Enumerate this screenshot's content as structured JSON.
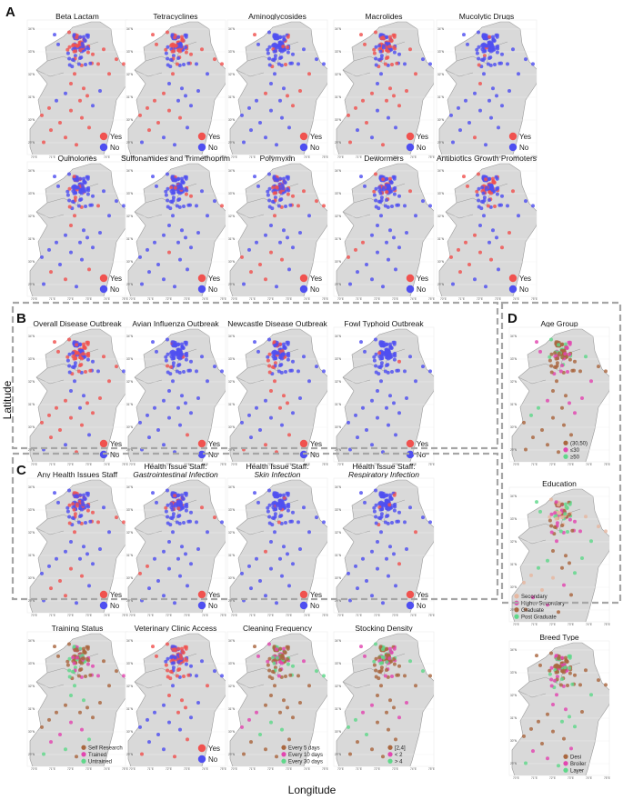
{
  "panel_labels": {
    "a": "A",
    "b": "B",
    "c": "C",
    "d": "D"
  },
  "axis_labels": {
    "x": "Longitude",
    "y": "Latitude"
  },
  "x_ticks": [
    "70°E",
    "71°E",
    "72°E",
    "73°E",
    "74°E",
    "75°E"
  ],
  "y_ticks": [
    "34°N",
    "33°N",
    "32°N",
    "31°N",
    "30°N",
    "29°N"
  ],
  "colors": {
    "yes": "#f0524f",
    "no": "#4f4ff0",
    "group1": "#a9673f",
    "group2": "#e246b0",
    "group3": "#5fd88a",
    "group4": "#e7b7a0",
    "map_fill": "#d9d9d9",
    "border": "#9a9a9a",
    "dash": "#a6a6a6"
  },
  "chart_data": [
    {
      "type": "scatter",
      "title": "Beta Lactam",
      "legend": [
        "Yes",
        "No"
      ],
      "legend_position": "bottom-right",
      "xlim": [
        70,
        75.5
      ],
      "ylim": [
        29,
        34.5
      ]
    },
    {
      "type": "scatter",
      "title": "Tetracyclines",
      "legend": [
        "Yes",
        "No"
      ],
      "legend_position": "bottom-right",
      "xlim": [
        70,
        75.5
      ],
      "ylim": [
        29,
        34.5
      ]
    },
    {
      "type": "scatter",
      "title": "Aminoglycosides",
      "legend": [
        "Yes",
        "No"
      ],
      "legend_position": "bottom-right",
      "xlim": [
        70,
        75.5
      ],
      "ylim": [
        29,
        34.5
      ]
    },
    {
      "type": "scatter",
      "title": "Macrolides",
      "legend": [
        "Yes",
        "No"
      ],
      "legend_position": "bottom-right",
      "xlim": [
        70,
        75.5
      ],
      "ylim": [
        29,
        34.5
      ]
    },
    {
      "type": "scatter",
      "title": "Mucolytic Drugs",
      "legend": [
        "Yes",
        "No"
      ],
      "legend_position": "bottom-right",
      "xlim": [
        70,
        75.5
      ],
      "ylim": [
        29,
        34.5
      ]
    },
    {
      "type": "scatter",
      "title": "Quinolones",
      "legend": [
        "Yes",
        "No"
      ],
      "legend_position": "bottom-right",
      "xlim": [
        70,
        75.5
      ],
      "ylim": [
        29,
        34.5
      ]
    },
    {
      "type": "scatter",
      "title": "Sulfonamides and Trimethoprim",
      "legend": [
        "Yes",
        "No"
      ],
      "legend_position": "bottom-right",
      "xlim": [
        70,
        75.5
      ],
      "ylim": [
        29,
        34.5
      ]
    },
    {
      "type": "scatter",
      "title": "Polymyxin",
      "legend": [
        "Yes",
        "No"
      ],
      "legend_position": "bottom-right",
      "xlim": [
        70,
        75.5
      ],
      "ylim": [
        29,
        34.5
      ]
    },
    {
      "type": "scatter",
      "title": "Dewormers",
      "legend": [
        "Yes",
        "No"
      ],
      "legend_position": "bottom-right",
      "xlim": [
        70,
        75.5
      ],
      "ylim": [
        29,
        34.5
      ]
    },
    {
      "type": "scatter",
      "title": "Antibiotics Growth Promoters",
      "legend": [
        "Yes",
        "No"
      ],
      "legend_position": "bottom-right",
      "xlim": [
        70,
        75.5
      ],
      "ylim": [
        29,
        34.5
      ]
    },
    {
      "type": "scatter",
      "title": "Overall Disease Outbreak",
      "legend": [
        "Yes",
        "No"
      ],
      "legend_position": "bottom-right",
      "xlim": [
        70,
        75.5
      ],
      "ylim": [
        29,
        34.5
      ]
    },
    {
      "type": "scatter",
      "title": "Avian Influenza Outbreak",
      "legend": [
        "Yes",
        "No"
      ],
      "legend_position": "bottom-right",
      "xlim": [
        70,
        75.5
      ],
      "ylim": [
        29,
        34.5
      ]
    },
    {
      "type": "scatter",
      "title": "Newcastle Disease Outbreak",
      "legend": [
        "Yes",
        "No"
      ],
      "legend_position": "bottom-right",
      "xlim": [
        70,
        75.5
      ],
      "ylim": [
        29,
        34.5
      ]
    },
    {
      "type": "scatter",
      "title": "Fowl Typhoid Outbreak",
      "legend": [
        "Yes",
        "No"
      ],
      "legend_position": "bottom-right",
      "xlim": [
        70,
        75.5
      ],
      "ylim": [
        29,
        34.5
      ]
    },
    {
      "type": "scatter",
      "title": "Any Health Issues Staff",
      "legend": [
        "Yes",
        "No"
      ],
      "legend_position": "bottom-right",
      "xlim": [
        70,
        75.5
      ],
      "ylim": [
        29,
        34.5
      ]
    },
    {
      "type": "scatter",
      "title": "Health Issue Staff:",
      "subtitle": "Gastrointestinal Infection",
      "legend": [
        "Yes",
        "No"
      ],
      "legend_position": "bottom-right",
      "xlim": [
        70,
        75.5
      ],
      "ylim": [
        29,
        34.5
      ]
    },
    {
      "type": "scatter",
      "title": "Health Issue Staff:",
      "subtitle": "Skin Infection",
      "legend": [
        "Yes",
        "No"
      ],
      "legend_position": "bottom-right",
      "xlim": [
        70,
        75.5
      ],
      "ylim": [
        29,
        34.5
      ]
    },
    {
      "type": "scatter",
      "title": "Health Issue Staff:",
      "subtitle": "Respiratory Infection",
      "legend": [
        "Yes",
        "No"
      ],
      "legend_position": "bottom-right",
      "xlim": [
        70,
        75.5
      ],
      "ylim": [
        29,
        34.5
      ]
    },
    {
      "type": "scatter",
      "title": "Training Status",
      "legend": [
        "Self Research",
        "Trained",
        "Untrained"
      ],
      "legend_position": "bottom-right",
      "xlim": [
        70,
        75.5
      ],
      "ylim": [
        29,
        34.5
      ]
    },
    {
      "type": "scatter",
      "title": "Veterinary Clinic Access",
      "legend": [
        "Yes",
        "No"
      ],
      "legend_position": "bottom-right",
      "xlim": [
        70,
        75.5
      ],
      "ylim": [
        29,
        34.5
      ]
    },
    {
      "type": "scatter",
      "title": "Cleaning Frequency",
      "legend": [
        "Every 5 days",
        "Every 10 days",
        "Every 30 days"
      ],
      "legend_position": "bottom-right",
      "xlim": [
        70,
        75.5
      ],
      "ylim": [
        29,
        34.5
      ]
    },
    {
      "type": "scatter",
      "title": "Stocking Density",
      "legend": [
        "[2,4]",
        "< 2",
        "> 4"
      ],
      "legend_position": "bottom-right",
      "xlim": [
        70,
        75.5
      ],
      "ylim": [
        29,
        34.5
      ]
    },
    {
      "type": "scatter",
      "title": "Age Group",
      "legend": [
        "(30,50)",
        "≤30",
        "≥50"
      ],
      "legend_position": "bottom-right",
      "xlim": [
        70,
        75.5
      ],
      "ylim": [
        29,
        34.5
      ]
    },
    {
      "type": "scatter",
      "title": "Education",
      "legend": [
        "Secondary",
        "Higher Secondary",
        "Graduate",
        "Post Graduate"
      ],
      "legend_position": "bottom-left",
      "xlim": [
        70,
        75.5
      ],
      "ylim": [
        29,
        34.5
      ]
    },
    {
      "type": "scatter",
      "title": "Breed Type",
      "legend": [
        "Desi",
        "Broiler",
        "Layer"
      ],
      "legend_position": "bottom-right",
      "xlim": [
        70,
        75.5
      ],
      "ylim": [
        29,
        34.5
      ]
    }
  ]
}
